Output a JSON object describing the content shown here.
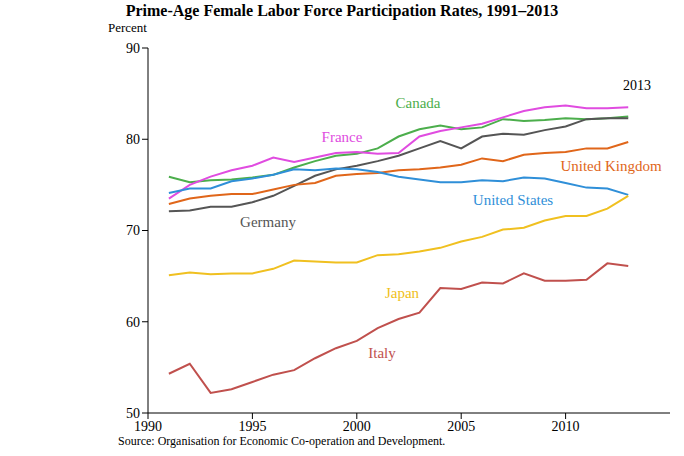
{
  "chart_data": {
    "type": "line",
    "title": "Prime-Age Female Labor Force Participation Rates, 1991–2013",
    "y_label": "Percent",
    "source": "Source: Organisation for Economic Co-operation and Development.",
    "annotation": "2013",
    "x": [
      1991,
      1992,
      1993,
      1994,
      1995,
      1996,
      1997,
      1998,
      1999,
      2000,
      2001,
      2002,
      2003,
      2004,
      2005,
      2006,
      2007,
      2008,
      2009,
      2010,
      2011,
      2012,
      2013
    ],
    "series": [
      {
        "name": "Canada",
        "color": "#4cae4c",
        "values": [
          75.9,
          75.3,
          75.5,
          75.6,
          75.8,
          76.1,
          76.9,
          77.6,
          78.2,
          78.4,
          79.0,
          80.3,
          81.1,
          81.5,
          81.1,
          81.3,
          82.2,
          82.0,
          82.1,
          82.3,
          82.2,
          82.3,
          82.5
        ]
      },
      {
        "name": "France",
        "color": "#e04ce0",
        "values": [
          73.5,
          75.0,
          75.9,
          76.6,
          77.1,
          78.0,
          77.5,
          78.0,
          78.5,
          78.6,
          78.4,
          78.5,
          80.3,
          80.9,
          81.3,
          81.7,
          82.4,
          83.1,
          83.5,
          83.7,
          83.4,
          83.4,
          83.5
        ]
      },
      {
        "name": "Germany",
        "color": "#555555",
        "values": [
          72.1,
          72.2,
          72.6,
          72.6,
          73.1,
          73.8,
          74.9,
          76.0,
          76.7,
          77.1,
          77.6,
          78.2,
          79.0,
          79.8,
          79.0,
          80.3,
          80.6,
          80.5,
          81.0,
          81.4,
          82.2,
          82.3,
          82.3
        ]
      },
      {
        "name": "United Kingdom",
        "color": "#e0661a",
        "values": [
          72.9,
          73.5,
          73.8,
          74.0,
          74.0,
          74.5,
          75.0,
          75.2,
          76.0,
          76.2,
          76.3,
          76.6,
          76.7,
          76.9,
          77.2,
          77.9,
          77.6,
          78.3,
          78.5,
          78.6,
          79.0,
          79.0,
          79.7
        ]
      },
      {
        "name": "United States",
        "color": "#2f8fd8",
        "values": [
          74.1,
          74.6,
          74.6,
          75.4,
          75.7,
          76.1,
          76.7,
          76.6,
          76.8,
          76.7,
          76.4,
          75.9,
          75.6,
          75.3,
          75.3,
          75.5,
          75.4,
          75.8,
          75.7,
          75.2,
          74.7,
          74.6,
          73.9
        ]
      },
      {
        "name": "Japan",
        "color": "#f0c020",
        "values": [
          65.1,
          65.4,
          65.2,
          65.3,
          65.3,
          65.8,
          66.7,
          66.6,
          66.5,
          66.5,
          67.3,
          67.4,
          67.7,
          68.1,
          68.8,
          69.3,
          70.1,
          70.3,
          71.1,
          71.6,
          71.6,
          72.4,
          73.8
        ]
      },
      {
        "name": "Italy",
        "color": "#c0504d",
        "values": [
          54.3,
          55.4,
          52.2,
          52.6,
          53.4,
          54.2,
          54.7,
          56.0,
          57.1,
          57.9,
          59.3,
          60.3,
          61.0,
          63.7,
          63.6,
          64.3,
          64.2,
          65.3,
          64.5,
          64.5,
          64.6,
          66.4,
          66.1
        ]
      }
    ],
    "xlim": [
      1990,
      2015
    ],
    "xticks": [
      1990,
      1995,
      2000,
      2005,
      2010
    ],
    "ylim": [
      50,
      90
    ],
    "yticks": [
      50,
      60,
      70,
      80,
      90
    ],
    "grid": false
  }
}
